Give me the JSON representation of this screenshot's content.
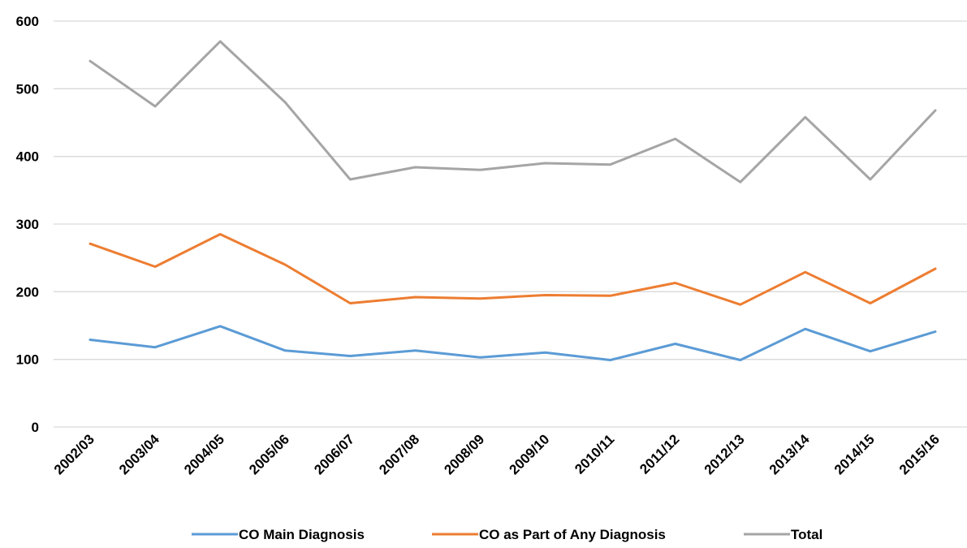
{
  "chart_data": {
    "type": "line",
    "title": "",
    "xlabel": "",
    "ylabel": "",
    "categories": [
      "2002/03",
      "2003/04",
      "2004/05",
      "2005/06",
      "2006/07",
      "2007/08",
      "2008/09",
      "2009/10",
      "2010/11",
      "2011/12",
      "2012/13",
      "2013/14",
      "2014/15",
      "2015/16"
    ],
    "ylim": [
      0,
      600
    ],
    "yticks": [
      0,
      100,
      200,
      300,
      400,
      500,
      600
    ],
    "grid": true,
    "legend_position": "bottom",
    "series": [
      {
        "name": "CO Main Diagnosis",
        "color": "#5b9bd5",
        "values": [
          129,
          118,
          149,
          113,
          105,
          113,
          103,
          110,
          99,
          123,
          99,
          145,
          112,
          141
        ]
      },
      {
        "name": "CO as Part of Any Diagnosis",
        "color": "#ed7d31",
        "values": [
          271,
          237,
          285,
          240,
          183,
          192,
          190,
          195,
          194,
          213,
          181,
          229,
          183,
          234
        ]
      },
      {
        "name": "Total",
        "color": "#a5a5a5",
        "values": [
          541,
          474,
          570,
          480,
          366,
          384,
          380,
          390,
          388,
          426,
          362,
          458,
          366,
          468
        ]
      }
    ]
  }
}
